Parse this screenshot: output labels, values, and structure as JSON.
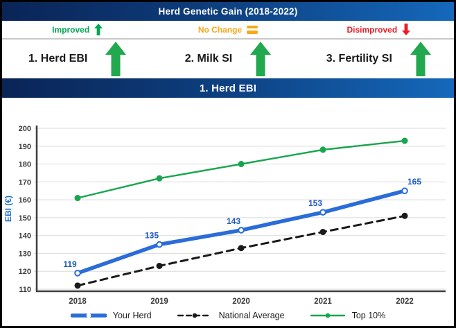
{
  "header": {
    "title": "Herd Genetic Gain (2018-2022)"
  },
  "status_legend": {
    "improved": {
      "label": "Improved",
      "icon": "up-arrow-icon",
      "color": "#00a651"
    },
    "no_change": {
      "label": "No Change",
      "icon": "equals-icon",
      "color": "#f7a81b"
    },
    "disimproved": {
      "label": "Disimproved",
      "icon": "down-arrow-icon",
      "color": "#ec1c24"
    }
  },
  "indicators": [
    {
      "label": "1. Herd EBI",
      "status": "improved"
    },
    {
      "label": "2. Milk SI",
      "status": "improved"
    },
    {
      "label": "3. Fertility SI",
      "status": "improved"
    }
  ],
  "section_header": {
    "title": "1. Herd EBI"
  },
  "colors": {
    "header_gradient_left": "#0a2456",
    "header_gradient_right": "#1568bb",
    "improved_green": "#00a651",
    "no_change_orange": "#f7a81b",
    "disimproved_red": "#ec1c24",
    "big_arrow_green": "#22a84e",
    "your_herd_blue": "#2a6cd8",
    "national_average_black": "#1a1a1a",
    "top10_green": "#17a54d",
    "point_label_blue": "#1d5ac6",
    "axis_title_blue": "#1c6fd2"
  },
  "chart_data": {
    "type": "line",
    "title": "",
    "categories": [
      "2018",
      "2019",
      "2020",
      "2021",
      "2022"
    ],
    "series": [
      {
        "name": "Top 10%",
        "values": [
          161,
          172,
          180,
          188,
          193
        ],
        "color": "#17a54d",
        "style": "solid",
        "marker": "filled-circle",
        "show_point_labels": false
      },
      {
        "name": "National Average",
        "values": [
          112,
          123,
          133,
          142,
          151
        ],
        "color": "#1a1a1a",
        "style": "dashed",
        "marker": "filled-circle",
        "show_point_labels": false
      },
      {
        "name": "Your Herd",
        "values": [
          119,
          135,
          143,
          153,
          165
        ],
        "color": "#2a6cd8",
        "style": "solid-thick",
        "marker": "open-circle",
        "show_point_labels": true
      }
    ],
    "legend_order": [
      "Your Herd",
      "National Average",
      "Top 10%"
    ],
    "xlabel": "",
    "ylabel": "EBI (€)",
    "ylim": [
      110,
      200
    ],
    "ytick_step": 10,
    "grid": true,
    "legend_position": "bottom"
  }
}
